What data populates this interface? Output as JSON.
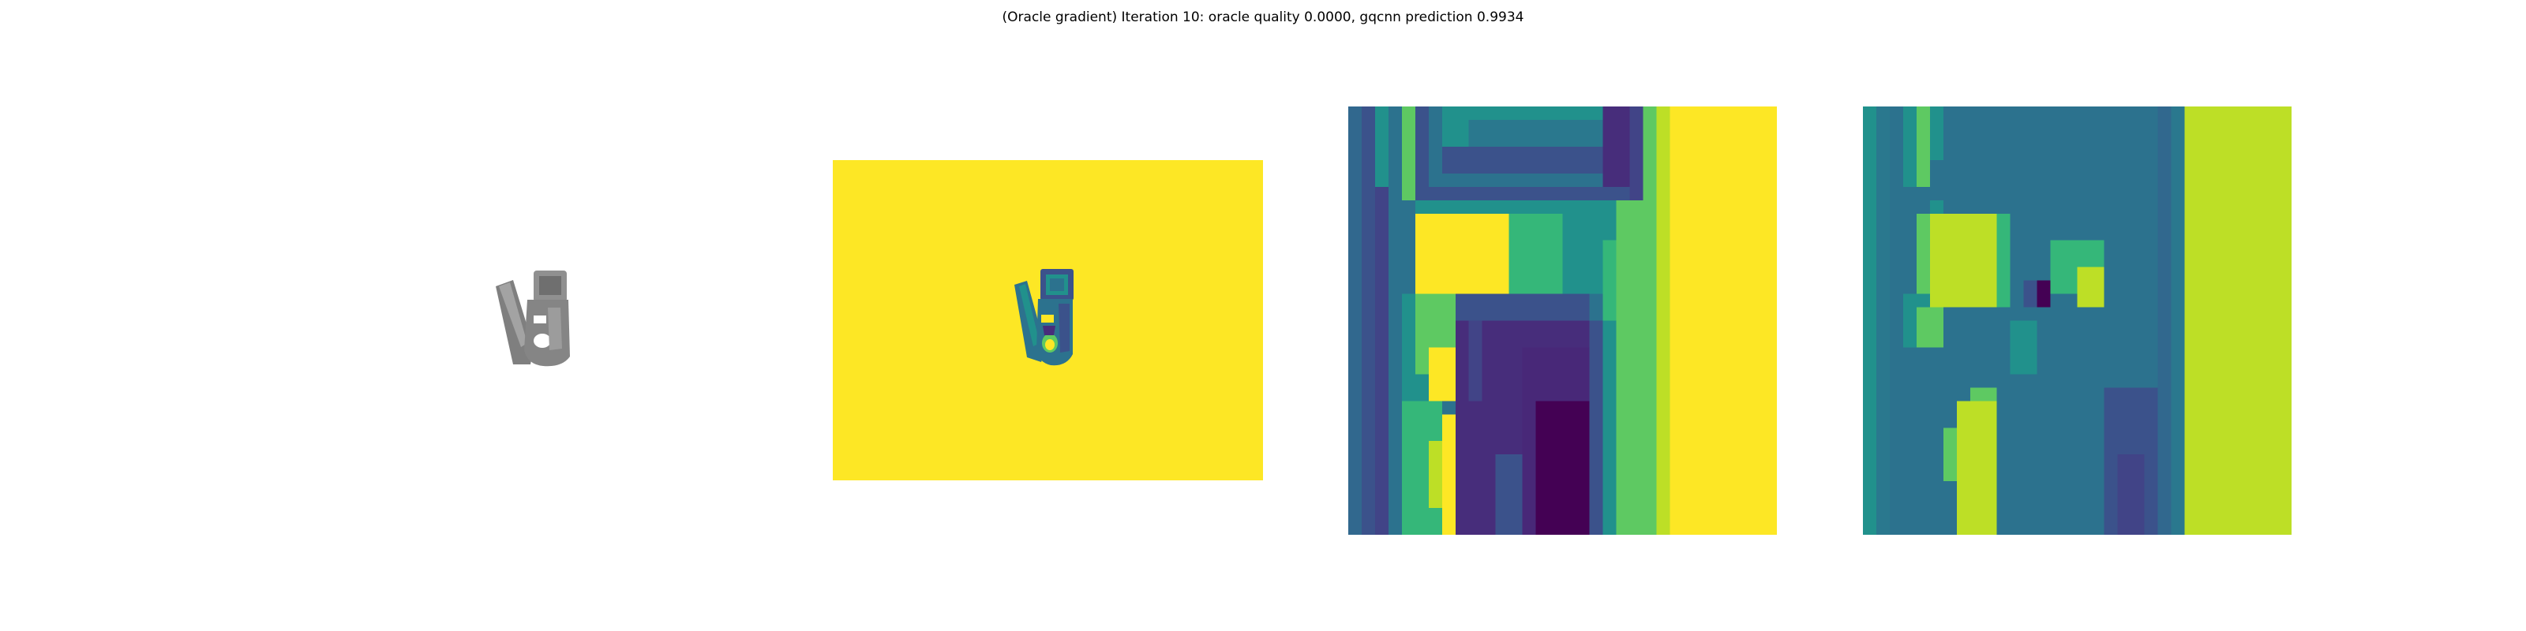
{
  "figure": {
    "title": "(Oracle gradient) Iteration 10: oracle quality 0.0000, gqcnn prediction 0.9934"
  },
  "colors": {
    "viridis_yellow": "#fde725",
    "viridis_lime": "#bddf26",
    "viridis_green": "#5ec962",
    "viridis_teal": "#21918c",
    "viridis_blue_teal": "#2c728e",
    "viridis_blue": "#3b528b",
    "viridis_indigo": "#472d7b",
    "viridis_dark": "#440154",
    "render_gray": "#8a8a8a"
  },
  "panels": [
    {
      "name": "rendered-object",
      "description_shown": "grayscale rendered object"
    },
    {
      "name": "depth-image",
      "colormap": "viridis"
    },
    {
      "name": "grasp-crop-depth",
      "colormap": "viridis"
    },
    {
      "name": "grasp-crop-gradient",
      "colormap": "viridis"
    }
  ]
}
